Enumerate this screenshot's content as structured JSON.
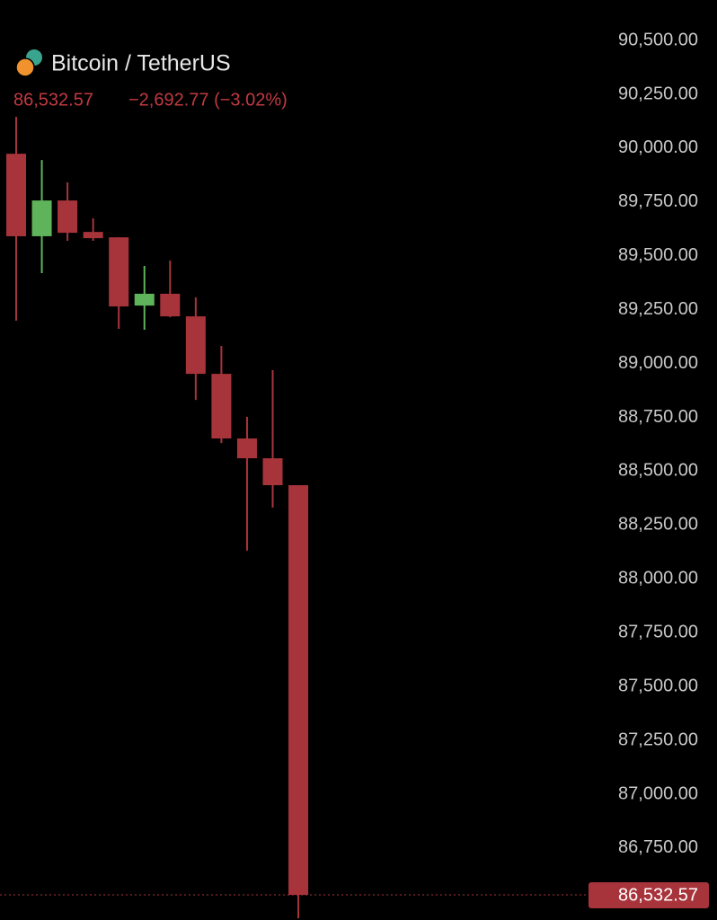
{
  "chart_data": {
    "type": "candlestick",
    "title": "Bitcoin / TetherUS",
    "last_price": {
      "value": 86532.57,
      "label": "86,532.57"
    },
    "change": "−2,692.77 (−3.02%)",
    "up_color": "#5fb35a",
    "down_color": "#a8343b",
    "candles": [
      {
        "open": 89974,
        "high": 90145,
        "low": 89199,
        "close": 89591
      },
      {
        "open": 89591,
        "high": 89945,
        "low": 89420,
        "close": 89757
      },
      {
        "open": 89757,
        "high": 89841,
        "low": 89570,
        "close": 89607
      },
      {
        "open": 89611,
        "high": 89674,
        "low": 89570,
        "close": 89582
      },
      {
        "open": 89586,
        "high": 89586,
        "low": 89161,
        "close": 89265
      },
      {
        "open": 89269,
        "high": 89453,
        "low": 89157,
        "close": 89324
      },
      {
        "open": 89324,
        "high": 89478,
        "low": 89215,
        "close": 89219
      },
      {
        "open": 89219,
        "high": 89307,
        "low": 88831,
        "close": 88952
      },
      {
        "open": 88952,
        "high": 89082,
        "low": 88631,
        "close": 88652
      },
      {
        "open": 88652,
        "high": 88752,
        "low": 88131,
        "close": 88560
      },
      {
        "open": 88560,
        "high": 88969,
        "low": 88331,
        "close": 88435
      },
      {
        "open": 88435,
        "high": 88435,
        "low": 86424,
        "close": 86532.57
      }
    ],
    "ylim": [
      86416,
      90688
    ],
    "yticks": [
      {
        "value": 90500,
        "label": "90,500.00"
      },
      {
        "value": 90250,
        "label": "90,250.00"
      },
      {
        "value": 90000,
        "label": "90,000.00"
      },
      {
        "value": 89750,
        "label": "89,750.00"
      },
      {
        "value": 89500,
        "label": "89,500.00"
      },
      {
        "value": 89250,
        "label": "89,250.00"
      },
      {
        "value": 89000,
        "label": "89,000.00"
      },
      {
        "value": 88750,
        "label": "88,750.00"
      },
      {
        "value": 88500,
        "label": "88,500.00"
      },
      {
        "value": 88250,
        "label": "88,250.00"
      },
      {
        "value": 88000,
        "label": "88,000.00"
      },
      {
        "value": 87750,
        "label": "87,750.00"
      },
      {
        "value": 87500,
        "label": "87,500.00"
      },
      {
        "value": 87250,
        "label": "87,250.00"
      },
      {
        "value": 87000,
        "label": "87,000.00"
      },
      {
        "value": 86750,
        "label": "86,750.00"
      }
    ]
  }
}
